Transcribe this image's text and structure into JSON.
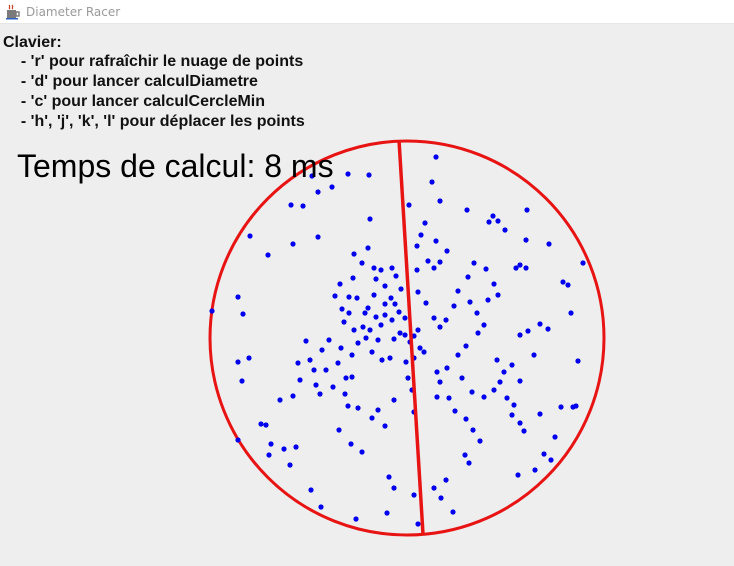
{
  "window": {
    "title": "Diameter Racer",
    "icon": "java-cup-icon"
  },
  "help": {
    "title": "Clavier:",
    "lines": [
      "  - 'r' pour rafraîchir le nuage de points",
      "  - 'd' pour lancer calculDiametre",
      "  - 'c' pour lancer calculCercleMin",
      "  - 'h', 'j', 'k', 'l' pour déplacer les points"
    ]
  },
  "timing": {
    "label": "Temps de calcul: 8 ms"
  },
  "colors": {
    "points": "#0000ee",
    "shapes": "#e81414",
    "background": "#eeeeee"
  }
}
